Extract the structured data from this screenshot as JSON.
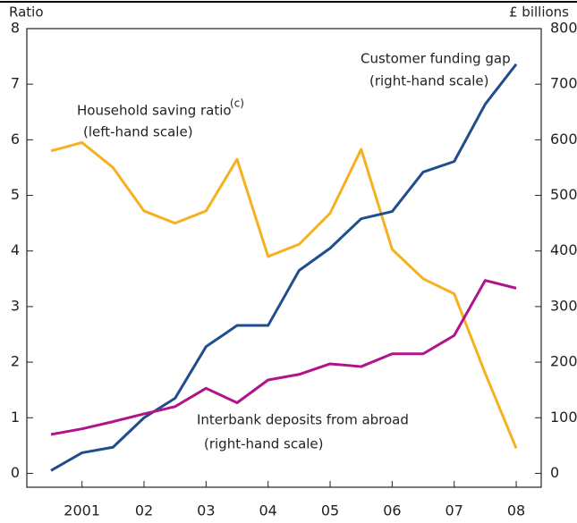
{
  "chart_data": {
    "type": "line",
    "y_label": "Ratio",
    "y2_label": "£ billions",
    "categories": [
      null,
      "2001",
      null,
      "02",
      null,
      "03",
      null,
      "04",
      null,
      "05",
      null,
      "06",
      null,
      "07",
      null,
      "08"
    ],
    "series": [
      {
        "name": "Household saving ratio",
        "color": "#f5b120",
        "axis": "y",
        "values": [
          5.8,
          5.95,
          5.5,
          4.72,
          4.5,
          4.72,
          5.65,
          3.9,
          4.12,
          4.68,
          5.83,
          4.03,
          3.5,
          3.23,
          1.8,
          0.45
        ]
      },
      {
        "name": "Customer funding gap",
        "color": "#1f4e8c",
        "axis": "y2",
        "values": [
          5,
          37,
          47,
          100,
          135,
          228,
          266,
          266,
          365,
          405,
          458,
          471,
          542,
          561,
          664,
          736
        ]
      },
      {
        "name": "Interbank deposits from abroad",
        "color": "#b0138a",
        "axis": "y2",
        "values": [
          70,
          80,
          93,
          107,
          120,
          153,
          127,
          168,
          178,
          197,
          192,
          215,
          215,
          248,
          347,
          333
        ]
      }
    ],
    "annotations": [
      "(c)",
      "(left-hand scale)",
      "(right-hand scale)",
      "(right-hand scale)"
    ],
    "ylim": [
      -0.25,
      8
    ],
    "yticks": [
      0,
      1,
      2,
      3,
      4,
      5,
      6,
      7,
      8
    ],
    "y2lim": [
      -25,
      800
    ],
    "y2ticks": [
      0,
      100,
      200,
      300,
      400,
      500,
      600,
      700,
      800
    ]
  }
}
